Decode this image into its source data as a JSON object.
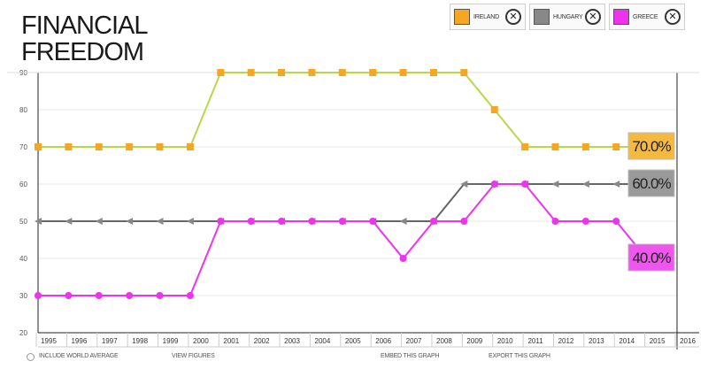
{
  "page": {
    "title": "FINANCIAL FREEDOM"
  },
  "legend": [
    {
      "label": "IRELAND",
      "color": "#f5a623",
      "close_icon": "close-icon"
    },
    {
      "label": "HUNGARY",
      "color": "#888888",
      "close_icon": "close-icon"
    },
    {
      "label": "GREECE",
      "color": "#ee33ee",
      "close_icon": "close-icon"
    }
  ],
  "footer": {
    "world_average": "INCLUDE WORLD AVERAGE",
    "view_figures": "VIEW FIGURES",
    "embed_graph": "EMBED THIS GRAPH",
    "export_graph": "EXPORT THIS GRAPH"
  },
  "chart_data": {
    "type": "line",
    "x": [
      1995,
      1996,
      1997,
      1998,
      1999,
      2000,
      2001,
      2002,
      2003,
      2004,
      2005,
      2006,
      2007,
      2008,
      2009,
      2010,
      2011,
      2012,
      2013,
      2014,
      2015
    ],
    "x_tick_labels": [
      "1995",
      "1996",
      "1997",
      "1998",
      "1999",
      "2000",
      "2001",
      "2002",
      "2003",
      "2004",
      "2005",
      "2006",
      "2007",
      "2008",
      "2009",
      "2010",
      "2011",
      "2012",
      "2013",
      "2014",
      "2015",
      "2016"
    ],
    "ylim": [
      20,
      90
    ],
    "y_ticks": [
      20,
      30,
      40,
      50,
      60,
      70,
      80,
      90
    ],
    "series": [
      {
        "name": "IRELAND",
        "color": "#f5a623",
        "line_color": "#b8d84a",
        "values": [
          70,
          70,
          70,
          70,
          70,
          70,
          90,
          90,
          90,
          90,
          90,
          90,
          90,
          90,
          90,
          80,
          70,
          70,
          70,
          70,
          70
        ],
        "end_label": "70.0%"
      },
      {
        "name": "HUNGARY",
        "color": "#888888",
        "line_color": "#666666",
        "values": [
          50,
          50,
          50,
          50,
          50,
          50,
          50,
          50,
          50,
          50,
          50,
          50,
          50,
          50,
          60,
          60,
          60,
          60,
          60,
          60,
          60
        ],
        "end_label": "60.0%"
      },
      {
        "name": "GREECE",
        "color": "#ee33ee",
        "line_color": "#ee33ee",
        "values": [
          30,
          30,
          30,
          30,
          30,
          30,
          50,
          50,
          50,
          50,
          50,
          50,
          40,
          50,
          50,
          60,
          60,
          50,
          50,
          50,
          40
        ],
        "end_label": "40.0%"
      }
    ]
  }
}
